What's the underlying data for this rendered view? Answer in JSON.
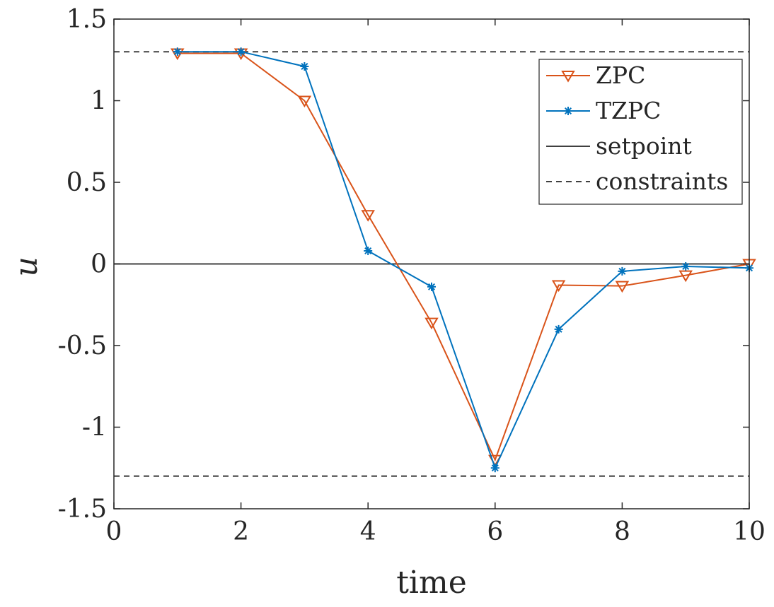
{
  "chart_data": {
    "type": "line",
    "xlabel": "time",
    "ylabel": "u",
    "xlim": [
      0,
      10
    ],
    "ylim": [
      -1.5,
      1.5
    ],
    "xticks": [
      "0",
      "2",
      "4",
      "6",
      "8",
      "10"
    ],
    "yticks": [
      "1.5",
      "1",
      "0.5",
      "0",
      "-0.5",
      "-1",
      "-1.5"
    ],
    "grid": false,
    "legend_position": "top-right",
    "series": [
      {
        "name": "ZPC",
        "color": "#d95319",
        "marker": "triangle-down",
        "x": [
          1,
          2,
          3,
          4,
          5,
          6,
          7,
          8,
          9,
          10
        ],
        "y": [
          1.29,
          1.29,
          1.0,
          0.3,
          -0.36,
          -1.2,
          -0.13,
          -0.135,
          -0.07,
          0.0
        ]
      },
      {
        "name": "TZPC",
        "color": "#0072bd",
        "marker": "asterisk",
        "x": [
          1,
          2,
          3,
          4,
          5,
          6,
          7,
          8,
          9,
          10
        ],
        "y": [
          1.3,
          1.3,
          1.21,
          0.08,
          -0.14,
          -1.25,
          -0.4,
          -0.045,
          -0.015,
          -0.025
        ]
      },
      {
        "name": "setpoint",
        "color": "#404040",
        "style": "solid",
        "value": 0
      },
      {
        "name": "constraints",
        "color": "#404040",
        "style": "dashed",
        "values": [
          1.3,
          -1.3
        ]
      }
    ]
  }
}
